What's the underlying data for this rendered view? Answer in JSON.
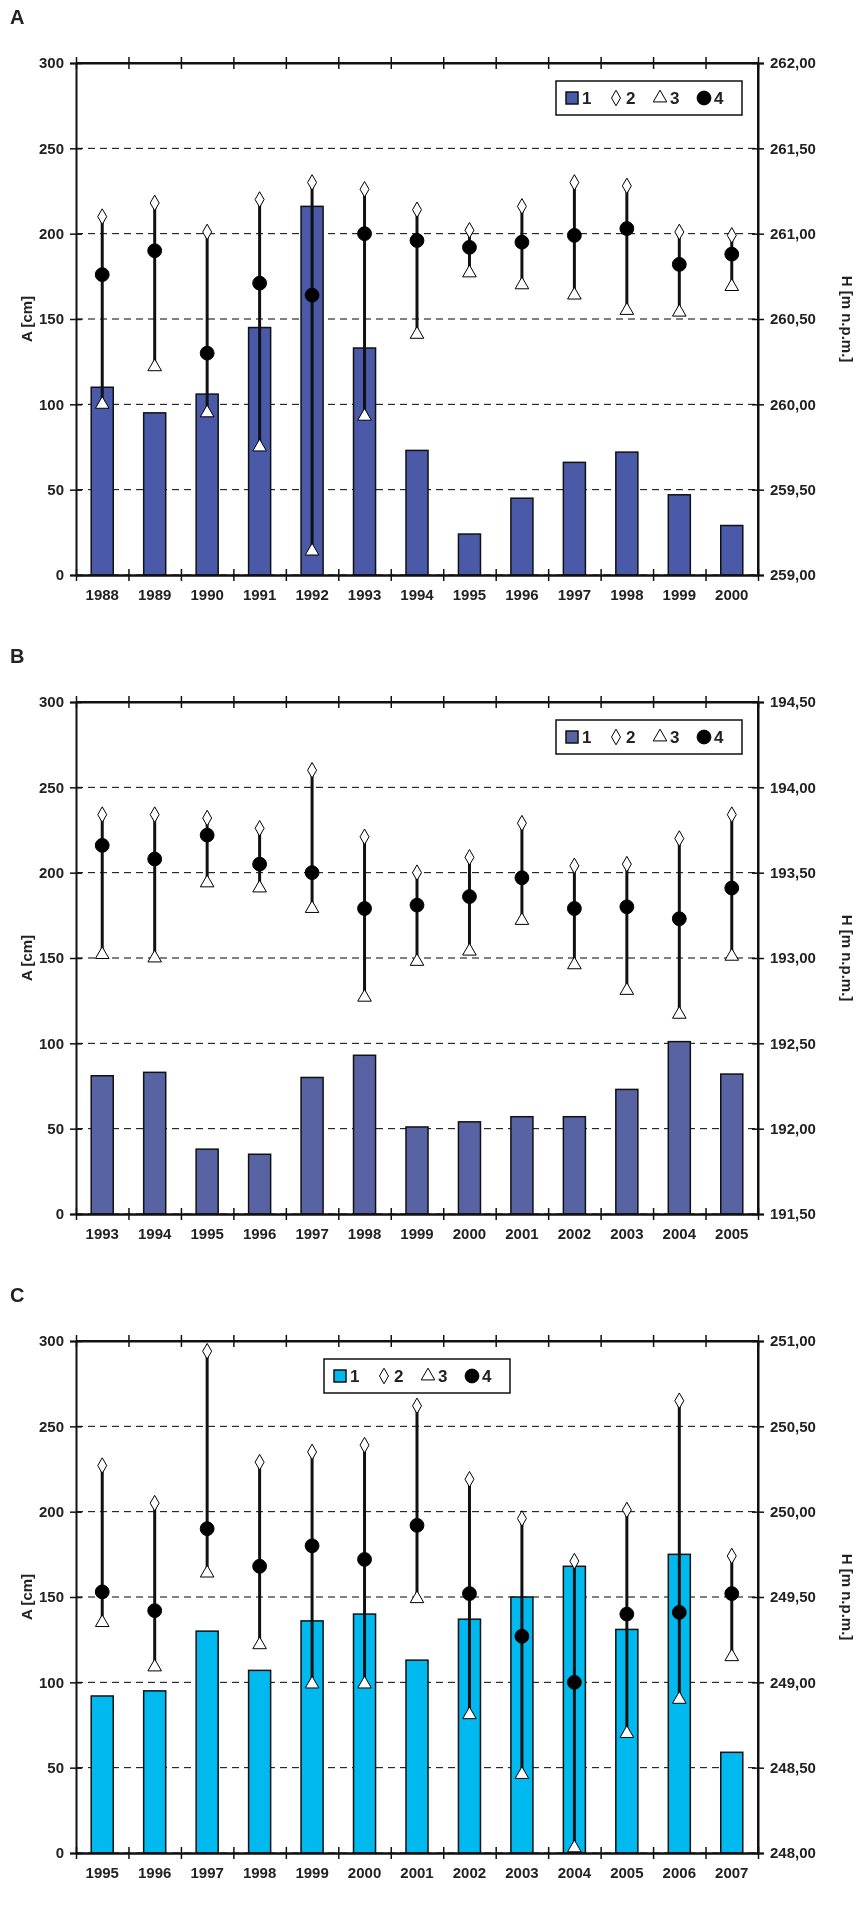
{
  "chart_data": [
    {
      "type": "bar",
      "title": "A",
      "ylabel": "A [cm]",
      "y2label": "H [m n.p.m.]",
      "categories": [
        "1988",
        "1989",
        "1990",
        "1991",
        "1992",
        "1993",
        "1994",
        "1995",
        "1996",
        "1997",
        "1998",
        "1999",
        "2000"
      ],
      "ylim": [
        0,
        300
      ],
      "yticks": [
        0,
        50,
        100,
        150,
        200,
        250,
        300
      ],
      "y2lim": [
        259,
        262
      ],
      "y2ticks": [
        {
          "value": 259,
          "label": "259,00"
        },
        {
          "value": 259.5,
          "label": "259,50"
        },
        {
          "value": 260,
          "label": "260,00"
        },
        {
          "value": 260.5,
          "label": "260,50"
        },
        {
          "value": 261,
          "label": "261,00"
        },
        {
          "value": 261.5,
          "label": "261,50"
        },
        {
          "value": 262,
          "label": "262,00"
        }
      ],
      "grid": "y",
      "legend": "top right",
      "series": [
        {
          "name": "1",
          "color": "#4a5aa8",
          "values": [
            110,
            95,
            106,
            145,
            216,
            133,
            73,
            24,
            45,
            66,
            72,
            47,
            29
          ]
        },
        {
          "name": "2",
          "type": "scatter",
          "axis": "y2",
          "marker": "diamond",
          "color": "#ffffff",
          "values": [
            261.1,
            261.18,
            261.01,
            261.2,
            261.3,
            261.26,
            261.14,
            261.02,
            261.16,
            261.3,
            261.28,
            261.01,
            260.99
          ]
        },
        {
          "name": "3",
          "type": "scatter",
          "axis": "y2",
          "marker": "triangle",
          "color": "#ffffff",
          "values": [
            260.0,
            260.22,
            259.95,
            259.75,
            259.14,
            259.93,
            260.41,
            260.77,
            260.7,
            260.64,
            260.55,
            260.54,
            260.69
          ]
        },
        {
          "name": "4",
          "type": "scatter",
          "axis": "y2",
          "marker": "circle",
          "color": "#000000",
          "values": [
            260.76,
            260.9,
            260.3,
            260.71,
            260.64,
            261.0,
            260.96,
            260.92,
            260.95,
            260.99,
            261.03,
            260.82,
            260.88
          ]
        }
      ]
    },
    {
      "type": "bar",
      "title": "B",
      "ylabel": "A [cm]",
      "y2label": "H [m n.p.m.]",
      "categories": [
        "1993",
        "1994",
        "1995",
        "1996",
        "1997",
        "1998",
        "1999",
        "2000",
        "2001",
        "2002",
        "2003",
        "2004",
        "2005"
      ],
      "ylim": [
        0,
        300
      ],
      "yticks": [
        0,
        50,
        100,
        150,
        200,
        250,
        300
      ],
      "y2lim": [
        191.5,
        194.5
      ],
      "y2ticks": [
        {
          "value": 191.5,
          "label": "191,50"
        },
        {
          "value": 192,
          "label": "192,00"
        },
        {
          "value": 192.5,
          "label": "192,50"
        },
        {
          "value": 193,
          "label": "193,00"
        },
        {
          "value": 193.5,
          "label": "193,50"
        },
        {
          "value": 194,
          "label": "194,00"
        },
        {
          "value": 194.5,
          "label": "194,50"
        }
      ],
      "grid": "y",
      "legend": "top right",
      "series": [
        {
          "name": "1",
          "color": "#5863a4",
          "values": [
            81,
            83,
            38,
            35,
            80,
            93,
            51,
            54,
            57,
            57,
            73,
            101,
            82
          ]
        },
        {
          "name": "2",
          "type": "scatter",
          "axis": "y2",
          "marker": "diamond",
          "color": "#ffffff",
          "values": [
            193.84,
            193.84,
            193.82,
            193.76,
            194.1,
            193.71,
            193.5,
            193.59,
            193.79,
            193.54,
            193.55,
            193.7,
            193.84
          ]
        },
        {
          "name": "3",
          "type": "scatter",
          "axis": "y2",
          "marker": "triangle",
          "color": "#ffffff",
          "values": [
            193.02,
            193.0,
            193.44,
            193.41,
            193.29,
            192.77,
            192.98,
            193.04,
            193.22,
            192.96,
            192.81,
            192.67,
            193.01
          ]
        },
        {
          "name": "4",
          "type": "scatter",
          "axis": "y2",
          "marker": "circle",
          "color": "#000000",
          "values": [
            193.66,
            193.58,
            193.72,
            193.55,
            193.5,
            193.29,
            193.31,
            193.36,
            193.47,
            193.29,
            193.3,
            193.23,
            193.41
          ]
        }
      ]
    },
    {
      "type": "bar",
      "title": "C",
      "ylabel": "A [cm]",
      "y2label": "H [m n.p.m.]",
      "categories": [
        "1995",
        "1996",
        "1997",
        "1998",
        "1999",
        "2000",
        "2001",
        "2002",
        "2003",
        "2004",
        "2005",
        "2006",
        "2007"
      ],
      "ylim": [
        0,
        300
      ],
      "yticks": [
        0,
        50,
        100,
        150,
        200,
        250,
        300
      ],
      "y2lim": [
        248,
        251
      ],
      "y2ticks": [
        {
          "value": 248,
          "label": "248,00"
        },
        {
          "value": 248.5,
          "label": "248,50"
        },
        {
          "value": 249,
          "label": "249,00"
        },
        {
          "value": 249.5,
          "label": "249,50"
        },
        {
          "value": 250,
          "label": "250,00"
        },
        {
          "value": 250.5,
          "label": "250,50"
        },
        {
          "value": 251,
          "label": "251,00"
        }
      ],
      "grid": "y",
      "legend": "top",
      "series": [
        {
          "name": "1",
          "color": "#00b9ef",
          "values": [
            92,
            95,
            130,
            107,
            136,
            140,
            113,
            137,
            150,
            168,
            131,
            175,
            59
          ]
        },
        {
          "name": "2",
          "type": "scatter",
          "axis": "y2",
          "marker": "diamond",
          "color": "#ffffff",
          "values": [
            250.27,
            250.05,
            250.94,
            250.29,
            250.35,
            250.39,
            250.62,
            250.19,
            249.96,
            249.71,
            250.01,
            250.65,
            249.74
          ]
        },
        {
          "name": "3",
          "type": "scatter",
          "axis": "y2",
          "marker": "triangle",
          "color": "#ffffff",
          "values": [
            249.35,
            249.09,
            249.64,
            249.22,
            248.99,
            248.99,
            249.49,
            248.81,
            248.46,
            248.03,
            248.7,
            248.9,
            249.15
          ]
        },
        {
          "name": "4",
          "type": "scatter",
          "axis": "y2",
          "marker": "circle",
          "color": "#000000",
          "values": [
            249.53,
            249.42,
            249.9,
            249.68,
            249.8,
            249.72,
            249.92,
            249.52,
            249.27,
            249.0,
            249.4,
            249.41,
            249.52
          ]
        }
      ]
    }
  ]
}
